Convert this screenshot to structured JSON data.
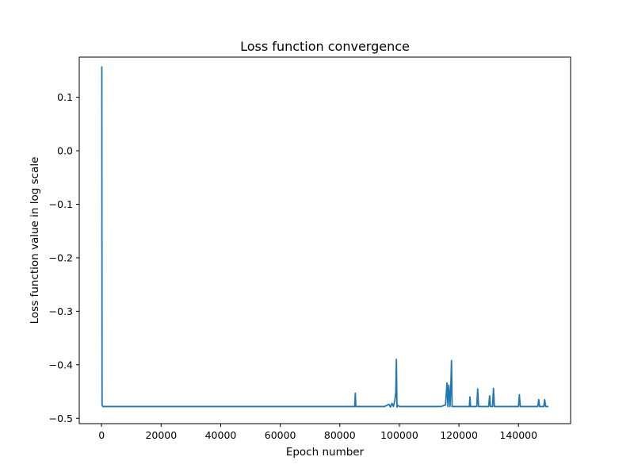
{
  "chart_data": {
    "type": "line",
    "title": "Loss function convergence",
    "xlabel": "Epoch number",
    "ylabel": "Loss function value in log scale",
    "xlim": [
      -7500,
      157500
    ],
    "ylim": [
      -0.51,
      0.175
    ],
    "grid": false,
    "line_color": "#1f77b4",
    "x_ticks": [
      {
        "value": 0,
        "label": "0"
      },
      {
        "value": 20000,
        "label": "20000"
      },
      {
        "value": 40000,
        "label": "40000"
      },
      {
        "value": 60000,
        "label": "60000"
      },
      {
        "value": 80000,
        "label": "80000"
      },
      {
        "value": 100000,
        "label": "100000"
      },
      {
        "value": 120000,
        "label": "120000"
      },
      {
        "value": 140000,
        "label": "140000"
      }
    ],
    "y_ticks": [
      {
        "value": 0.1,
        "label": "0.1"
      },
      {
        "value": 0.0,
        "label": "0.0"
      },
      {
        "value": -0.1,
        "label": "−0.1"
      },
      {
        "value": -0.2,
        "label": "−0.2"
      },
      {
        "value": -0.3,
        "label": "−0.3"
      },
      {
        "value": -0.4,
        "label": "−0.4"
      },
      {
        "value": -0.5,
        "label": "−0.5"
      }
    ],
    "series": [
      {
        "x": [
          0,
          80,
          160,
          400,
          1000,
          5000,
          20000,
          40000,
          60000,
          80000,
          85000,
          85200,
          85400,
          90000,
          95000,
          96500,
          97000,
          97500,
          98000,
          98500,
          98800,
          99000,
          99200,
          99500,
          100000,
          105000,
          110000,
          114000,
          115500,
          116000,
          116300,
          116600,
          117000,
          117300,
          117500,
          117700,
          118000,
          120000,
          123500,
          123700,
          123900,
          126000,
          126300,
          126600,
          130000,
          130300,
          130600,
          131300,
          131600,
          131900,
          135000,
          140000,
          140300,
          140600,
          145000,
          146500,
          146800,
          147100,
          148500,
          148800,
          149100,
          150000
        ],
        "y": [
          0.157,
          0.157,
          -0.475,
          -0.478,
          -0.478,
          -0.478,
          -0.478,
          -0.478,
          -0.478,
          -0.478,
          -0.478,
          -0.453,
          -0.478,
          -0.478,
          -0.478,
          -0.474,
          -0.479,
          -0.472,
          -0.478,
          -0.466,
          -0.452,
          -0.39,
          -0.479,
          -0.476,
          -0.478,
          -0.478,
          -0.478,
          -0.478,
          -0.475,
          -0.434,
          -0.478,
          -0.438,
          -0.478,
          -0.436,
          -0.392,
          -0.478,
          -0.478,
          -0.478,
          -0.478,
          -0.46,
          -0.478,
          -0.478,
          -0.445,
          -0.478,
          -0.478,
          -0.458,
          -0.478,
          -0.478,
          -0.444,
          -0.478,
          -0.478,
          -0.478,
          -0.456,
          -0.478,
          -0.478,
          -0.478,
          -0.465,
          -0.478,
          -0.478,
          -0.465,
          -0.478,
          -0.478
        ]
      }
    ]
  }
}
